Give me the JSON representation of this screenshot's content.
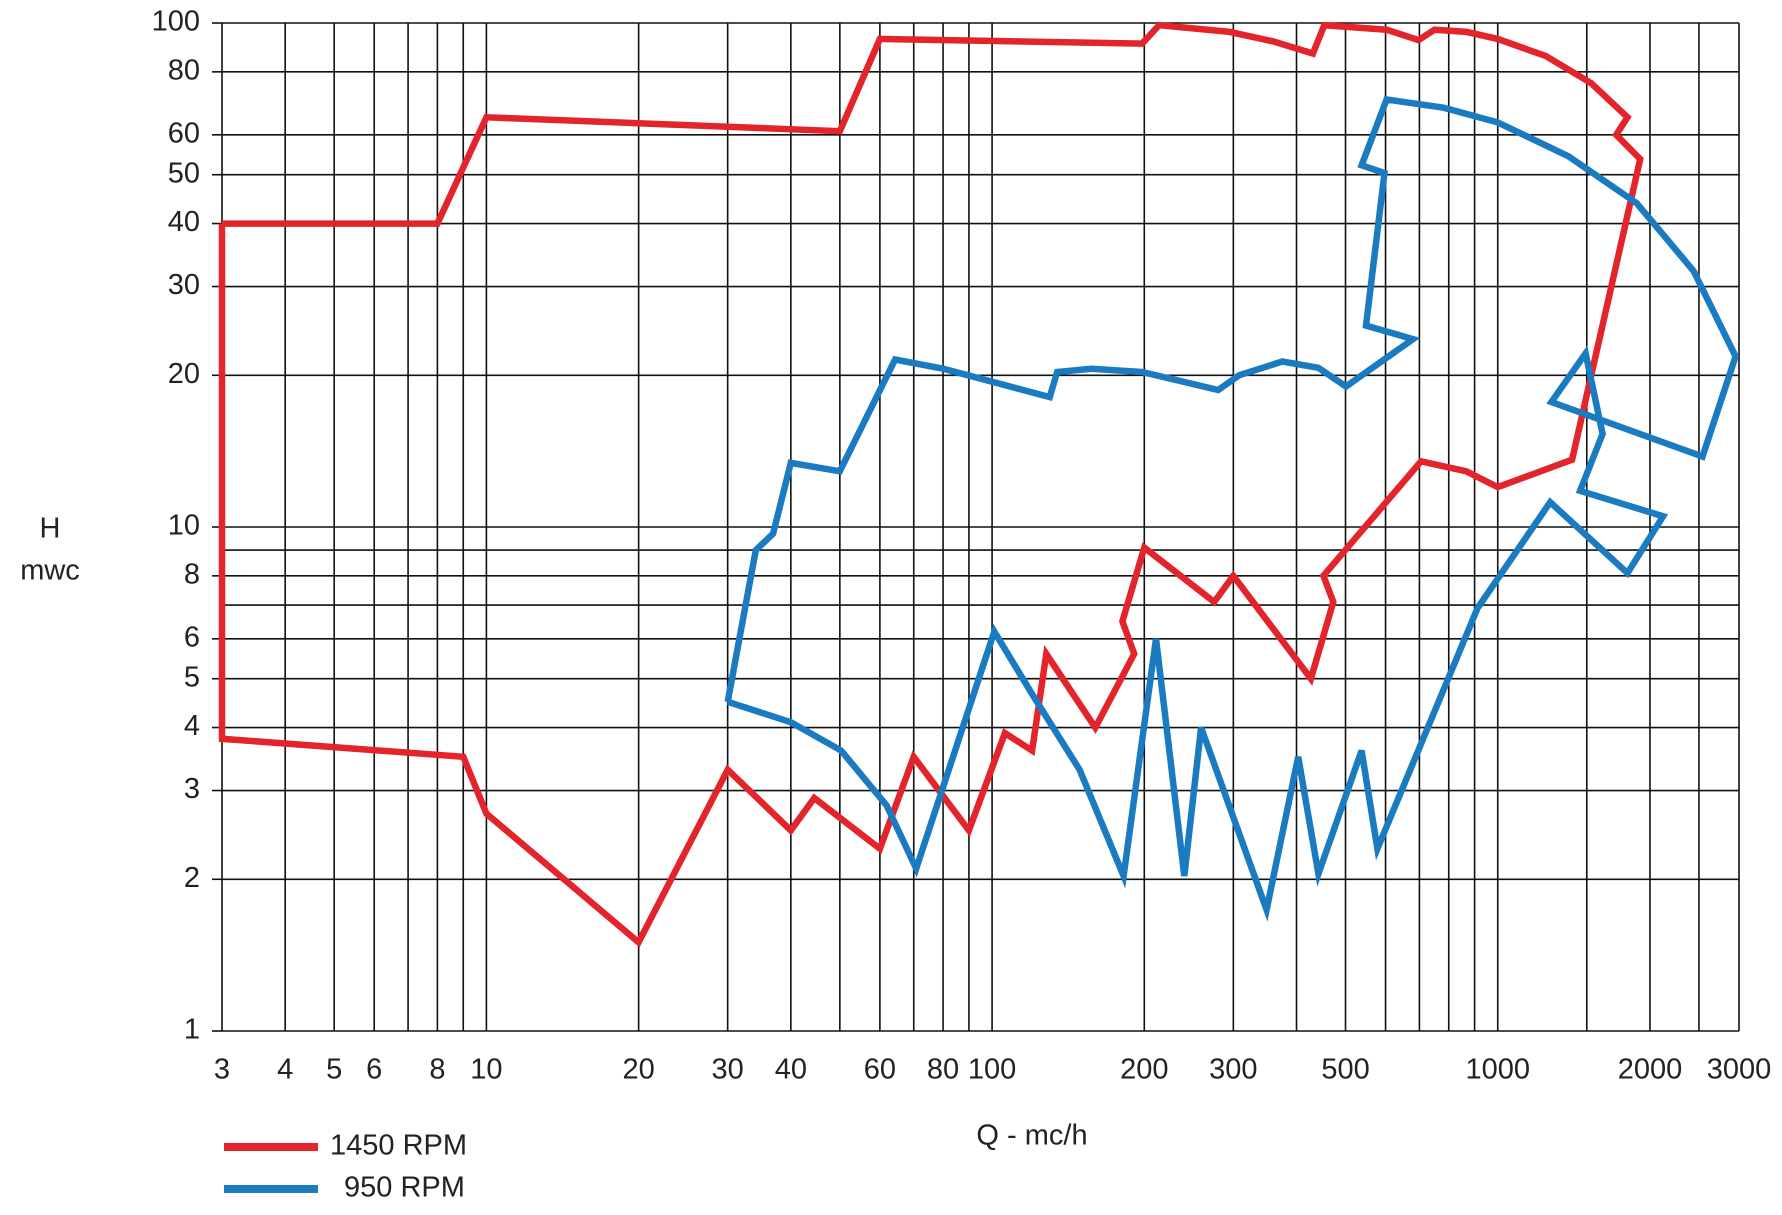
{
  "chart_data": {
    "type": "line",
    "xlabel": "Q - mc/h",
    "ylabel": [
      "H",
      "mwc"
    ],
    "xscale": "log",
    "yscale": "log",
    "grid": true,
    "xlim": [
      3,
      3000
    ],
    "ylim": [
      1,
      100
    ],
    "xticks": [
      3,
      4,
      5,
      6,
      8,
      10,
      20,
      30,
      40,
      60,
      80,
      100,
      200,
      300,
      500,
      1000,
      2000,
      3000
    ],
    "yticks": [
      1,
      2,
      3,
      4,
      5,
      6,
      8,
      10,
      20,
      30,
      40,
      50,
      60,
      80,
      100
    ],
    "xminor": [
      7,
      9,
      50,
      70,
      90,
      400,
      600,
      700,
      800,
      900,
      1500,
      2500
    ],
    "yminor": [
      7,
      9
    ],
    "legend": "bottom-left",
    "series": [
      {
        "name": "1450 RPM",
        "color": "#e3242b",
        "x": [
          3,
          8,
          10,
          50,
          60,
          198,
          214,
          295,
          359,
          431,
          454,
          603,
          697,
          750,
          867,
          1000,
          1244,
          1530,
          1806,
          1715,
          1913,
          1403,
          1000,
          867,
          705,
          452,
          473,
          427,
          300,
          275,
          200,
          181,
          191,
          160,
          128,
          120,
          106,
          90,
          70,
          60,
          44.5,
          40,
          30,
          20,
          10,
          9,
          3,
          3
        ],
        "values": [
          40,
          40,
          65,
          61,
          93,
          91,
          99,
          96,
          92,
          87,
          99,
          97,
          92.5,
          97,
          96,
          93,
          86,
          76,
          65,
          60,
          53.7,
          13.6,
          12,
          12.9,
          13.5,
          8,
          7.1,
          5,
          8,
          7.1,
          9.1,
          6.5,
          5.6,
          4,
          5.6,
          3.6,
          3.9,
          2.5,
          3.5,
          2.3,
          2.9,
          2.5,
          3.3,
          1.5,
          2.7,
          3.5,
          3.8,
          40
        ]
      },
      {
        "name": "950 RPM",
        "color": "#1b7bc0",
        "x": [
          30,
          34.1,
          36.9,
          40,
          50,
          64.3,
          80.2,
          130,
          134.5,
          157,
          198,
          280,
          308,
          375,
          442,
          501,
          680,
          549,
          597,
          538,
          603,
          781,
          1000,
          1380,
          1883,
          2440,
          2954,
          2541,
          1277,
          1492,
          1612,
          1455,
          2123,
          1806,
          1270,
          912,
          578,
          538,
          442,
          403,
          349,
          259,
          240,
          211,
          182,
          149,
          121,
          101,
          70.8,
          61.9,
          50.3,
          40,
          30
        ],
        "values": [
          4.5,
          9,
          9.7,
          13.4,
          12.9,
          21.5,
          20.6,
          18.1,
          20.3,
          20.6,
          20.3,
          18.7,
          20,
          21.3,
          20.7,
          19,
          23.6,
          25.1,
          50.4,
          52.2,
          70.5,
          67.9,
          63.5,
          54.4,
          43.9,
          32.2,
          21.8,
          13.8,
          17.7,
          22.1,
          15.3,
          11.8,
          10.5,
          8.1,
          11.2,
          6.9,
          2.3,
          3.6,
          2.05,
          3.5,
          1.74,
          4,
          2.03,
          6,
          2.03,
          3.3,
          4.6,
          6.2,
          2.1,
          2.8,
          3.6,
          4.1,
          4.5
        ]
      }
    ]
  }
}
